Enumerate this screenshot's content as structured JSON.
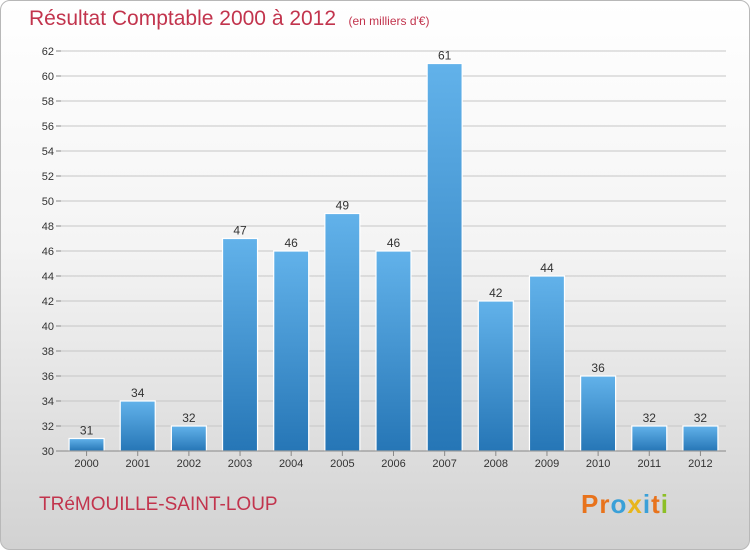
{
  "title": "Résultat Comptable 2000 à 2012",
  "unit_note": "(en milliers d'€)",
  "city": "TRéMOUILLE-SAINT-LOUP",
  "logo": {
    "letters": [
      "P",
      "r",
      "o",
      "x",
      "i",
      "t",
      "i"
    ],
    "colors": [
      "#e8731c",
      "#e8731c",
      "#3aa0d8",
      "#e8b61c",
      "#3aa0d8",
      "#e8731c",
      "#8cbf26"
    ]
  },
  "colors": {
    "accent": "#c2344d",
    "bar_top": "#62b2ea",
    "bar_bottom": "#2676b6",
    "grid": "#c6c6c6"
  },
  "chart_data": {
    "type": "bar",
    "categories": [
      "2000",
      "2001",
      "2002",
      "2003",
      "2004",
      "2005",
      "2006",
      "2007",
      "2008",
      "2009",
      "2010",
      "2011",
      "2012"
    ],
    "values": [
      31,
      34,
      32,
      47,
      46,
      49,
      46,
      61,
      42,
      44,
      36,
      32,
      32
    ],
    "ylim": [
      30,
      62
    ],
    "yticks": [
      30,
      32,
      34,
      36,
      38,
      40,
      42,
      44,
      46,
      48,
      50,
      52,
      54,
      56,
      58,
      60,
      62
    ],
    "grid": true,
    "data_labels": true
  }
}
